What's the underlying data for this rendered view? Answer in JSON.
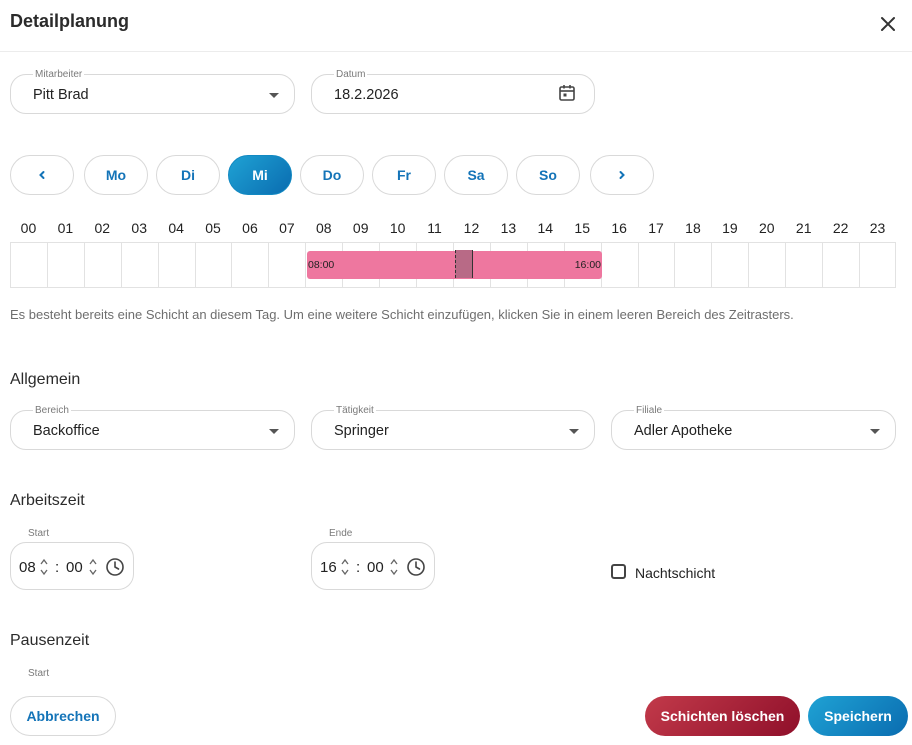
{
  "dialog": {
    "title": "Detailplanung"
  },
  "employee": {
    "label": "Mitarbeiter",
    "value": "Pitt Brad"
  },
  "date": {
    "label": "Datum",
    "value": "18.2.2026"
  },
  "day_nav": {
    "prev": "‹",
    "next": "›",
    "days": [
      "Mo",
      "Di",
      "Mi",
      "Do",
      "Fr",
      "Sa",
      "So"
    ],
    "active_day": "Mi"
  },
  "timeline": {
    "hours": [
      "00",
      "01",
      "02",
      "03",
      "04",
      "05",
      "06",
      "07",
      "08",
      "09",
      "10",
      "11",
      "12",
      "13",
      "14",
      "15",
      "16",
      "17",
      "18",
      "19",
      "20",
      "21",
      "22",
      "23"
    ],
    "shift_start": "08:00",
    "shift_end": "16:00",
    "shift_color": "#ee779f"
  },
  "info_text": "Es besteht bereits eine Schicht an diesem Tag. Um eine weitere Schicht einzufügen, klicken Sie in einem leeren Bereich des Zeitrasters.",
  "general": {
    "heading": "Allgemein",
    "area": {
      "label": "Bereich",
      "value": "Backoffice"
    },
    "activity": {
      "label": "Tätigkeit",
      "value": "Springer"
    },
    "branch": {
      "label": "Filiale",
      "value": "Adler Apotheke"
    }
  },
  "work_time": {
    "heading": "Arbeitszeit",
    "start": {
      "label": "Start",
      "hour": "08",
      "minute": "00"
    },
    "end": {
      "label": "Ende",
      "hour": "16",
      "minute": "00"
    },
    "night_shift_label": "Nachtschicht"
  },
  "break_time": {
    "heading": "Pausenzeit",
    "start_label": "Start"
  },
  "actions": {
    "cancel": "Abbrechen",
    "delete": "Schichten löschen",
    "save": "Speichern"
  },
  "colors": {
    "primary": "#1474b8",
    "danger": "#a31c34",
    "accent": "#1289c2"
  },
  "icons": [
    "close-icon",
    "calendar-icon",
    "chevron-left-icon",
    "chevron-right-icon",
    "caret-down-icon",
    "clock-icon",
    "spin-up-down-icon"
  ]
}
